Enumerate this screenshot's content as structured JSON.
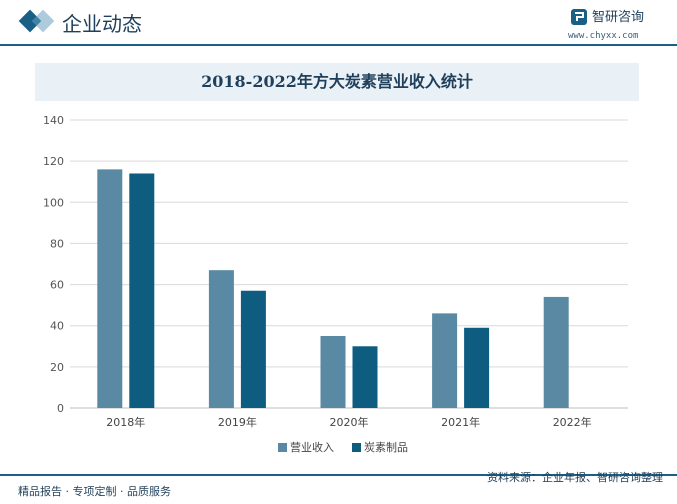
{
  "header": {
    "title": "企业动态",
    "logo_name": "智研咨询",
    "logo_url": "www.chyxx.com"
  },
  "colors": {
    "series1": "#5a8aa3",
    "series2": "#0e5c80",
    "accent": "#1a5f86",
    "grid": "#d9d9d9"
  },
  "chart_data": {
    "type": "bar",
    "title": "2018-2022年方大炭素营业收入统计",
    "categories": [
      "2018年",
      "2019年",
      "2020年",
      "2021年",
      "2022年"
    ],
    "series": [
      {
        "name": "营业收入",
        "values": [
          116,
          67,
          35,
          46,
          54
        ]
      },
      {
        "name": "炭素制品",
        "values": [
          114,
          57,
          30,
          39,
          null
        ]
      }
    ],
    "ylim": [
      0,
      140
    ],
    "yticks": [
      0,
      20,
      40,
      60,
      80,
      100,
      120,
      140
    ],
    "grid": true,
    "legend": "bottom"
  },
  "footer": {
    "left": "精品报告 · 专项定制 · 品质服务",
    "right": "资料来源：企业年报、智研咨询整理"
  }
}
